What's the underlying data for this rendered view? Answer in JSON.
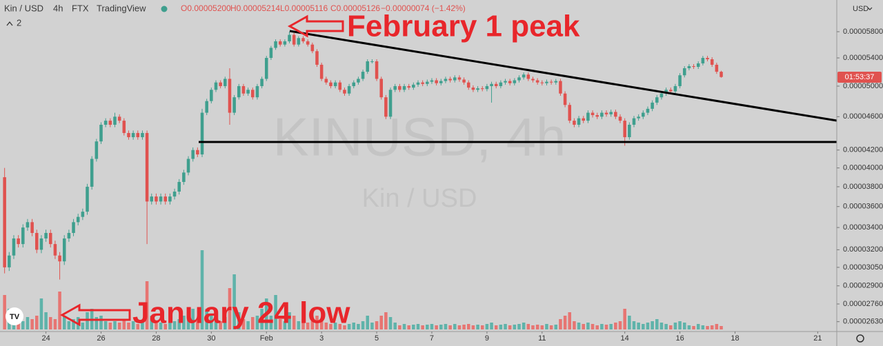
{
  "header": {
    "symbol": "Kin / USD",
    "interval": "4h",
    "exchange": "FTX",
    "source": "TradingView",
    "ohlc": [
      "O0.00005200",
      "H0.00005214",
      "L0.00005116",
      "C0.00005126",
      "−0.00000074 (−1.42%)"
    ],
    "indicators": "2",
    "currency": "USD",
    "countdown": "01:53:37"
  },
  "watermark": {
    "ticker": "KINUSD, 4h",
    "name": "Kin / USD"
  },
  "annotations": [
    "February 1 peak",
    "January 24 low"
  ],
  "chart_data": {
    "type": "candlestick",
    "log": true,
    "grid": false,
    "up_color": "#3f9f8e",
    "down_color": "#e0524f",
    "volume_up_color": "#5fb3aa",
    "volume_down_color": "#e77572",
    "xlim": [
      -1,
      181
    ],
    "xticks": [
      {
        "value": 9,
        "label": "24"
      },
      {
        "value": 21,
        "label": "26"
      },
      {
        "value": 33,
        "label": "28"
      },
      {
        "value": 45,
        "label": "30"
      },
      {
        "value": 57,
        "label": "Feb"
      },
      {
        "value": 69,
        "label": "3"
      },
      {
        "value": 81,
        "label": "5"
      },
      {
        "value": 93,
        "label": "7"
      },
      {
        "value": 105,
        "label": "9"
      },
      {
        "value": 117,
        "label": "11"
      },
      {
        "value": 135,
        "label": "14"
      },
      {
        "value": 147,
        "label": "16"
      },
      {
        "value": 159,
        "label": "18"
      },
      {
        "value": 177,
        "label": "21"
      }
    ],
    "ylim": [
      2.565e-05,
      6.324e-05
    ],
    "yticks": [
      {
        "value": 5.8e-05,
        "label": "0.00005800"
      },
      {
        "value": 5.4e-05,
        "label": "0.00005400"
      },
      {
        "value": 5e-05,
        "label": "0.00005000"
      },
      {
        "value": 4.6e-05,
        "label": "0.00004600"
      },
      {
        "value": 4.2e-05,
        "label": "0.00004200"
      },
      {
        "value": 4e-05,
        "label": "0.00004000"
      },
      {
        "value": 3.8e-05,
        "label": "0.00003800"
      },
      {
        "value": 3.6e-05,
        "label": "0.00003600"
      },
      {
        "value": 3.4e-05,
        "label": "0.00003400"
      },
      {
        "value": 3.2e-05,
        "label": "0.00003200"
      },
      {
        "value": 3.05e-05,
        "label": "0.00003050"
      },
      {
        "value": 2.9e-05,
        "label": "0.00002900"
      },
      {
        "value": 2.76e-05,
        "label": "0.00002760"
      },
      {
        "value": 2.63e-05,
        "label": "0.00002630"
      }
    ],
    "open": [
      3.9e-05,
      3.05e-05,
      3.15e-05,
      3.3e-05,
      3.25e-05,
      3.4e-05,
      3.45e-05,
      3.35e-05,
      3.2e-05,
      3.3e-05,
      3.35e-05,
      3.25e-05,
      3.15e-05,
      3.1e-05,
      3.3e-05,
      3.35e-05,
      3.45e-05,
      3.5e-05,
      3.55e-05,
      3.8e-05,
      4.1e-05,
      4.3e-05,
      4.5e-05,
      4.55e-05,
      4.5e-05,
      4.6e-05,
      4.55e-05,
      4.4e-05,
      4.35e-05,
      4.4e-05,
      4.35e-05,
      4.4e-05,
      3.65e-05,
      3.7e-05,
      3.65e-05,
      3.7e-05,
      3.65e-05,
      3.7e-05,
      3.75e-05,
      3.85e-05,
      3.95e-05,
      4.1e-05,
      4.2e-05,
      4.15e-05,
      4.65e-05,
      4.8e-05,
      4.95e-05,
      5.05e-05,
      5e-05,
      5.1e-05,
      4.65e-05,
      4.85e-05,
      5e-05,
      4.9e-05,
      4.95e-05,
      4.85e-05,
      5e-05,
      5.1e-05,
      5.4e-05,
      5.55e-05,
      5.65e-05,
      5.6e-05,
      5.65e-05,
      5.75e-05,
      5.6e-05,
      5.7e-05,
      5.65e-05,
      5.6e-05,
      5.5e-05,
      5.3e-05,
      5.1e-05,
      5.05e-05,
      5e-05,
      5.05e-05,
      4.95e-05,
      4.9e-05,
      5e-05,
      5.05e-05,
      5.1e-05,
      5.2e-05,
      5.35e-05,
      5.35e-05,
      5.1e-05,
      4.85e-05,
      4.6e-05,
      4.95e-05,
      5e-05,
      4.95e-05,
      5e-05,
      4.98e-05,
      5.02e-05,
      5.05e-05,
      5.03e-05,
      5.06e-05,
      5.08e-05,
      5.04e-05,
      5.07e-05,
      5.1e-05,
      5.08e-05,
      5.12e-05,
      5.09e-05,
      5.05e-05,
      4.98e-05,
      4.95e-05,
      4.97e-05,
      4.96e-05,
      5e-05,
      5.03e-05,
      5e-05,
      5.05e-05,
      5.07e-05,
      5.04e-05,
      5.08e-05,
      5.12e-05,
      5.16e-05,
      5.1e-05,
      5.08e-05,
      5.05e-05,
      5.04e-05,
      5.06e-05,
      5.05e-05,
      5.07e-05,
      4.9e-05,
      4.75e-05,
      4.55e-05,
      4.5e-05,
      4.58e-05,
      4.55e-05,
      4.65e-05,
      4.62e-05,
      4.6e-05,
      4.65e-05,
      4.63e-05,
      4.66e-05,
      4.6e-05,
      4.55e-05,
      4.35e-05,
      4.5e-05,
      4.58e-05,
      4.6e-05,
      4.65e-05,
      4.7e-05,
      4.78e-05,
      4.85e-05,
      4.9e-05,
      4.95e-05,
      4.93e-05,
      5e-05,
      5.15e-05,
      5.25e-05,
      5.28e-05,
      5.27e-05,
      5.32e-05,
      5.4e-05,
      5.38e-05,
      5.3e-05,
      5.2e-05
    ],
    "high": [
      4e-05,
      3.18e-05,
      3.33e-05,
      3.33e-05,
      3.43e-05,
      3.48e-05,
      3.48e-05,
      3.38e-05,
      3.33e-05,
      3.38e-05,
      3.38e-05,
      3.28e-05,
      3.18e-05,
      3.33e-05,
      3.38e-05,
      3.48e-05,
      3.53e-05,
      3.58e-05,
      3.83e-05,
      4.13e-05,
      4.33e-05,
      4.53e-05,
      4.58e-05,
      4.58e-05,
      4.65e-05,
      4.63e-05,
      4.58e-05,
      4.43e-05,
      4.43e-05,
      4.43e-05,
      4.43e-05,
      4.43e-05,
      3.73e-05,
      3.73e-05,
      3.73e-05,
      3.73e-05,
      3.73e-05,
      3.78e-05,
      3.88e-05,
      3.98e-05,
      4.13e-05,
      4.23e-05,
      4.23e-05,
      4.7e-05,
      4.83e-05,
      4.98e-05,
      5.08e-05,
      5.08e-05,
      5.13e-05,
      5.25e-05,
      4.88e-05,
      5.03e-05,
      5.03e-05,
      4.98e-05,
      4.98e-05,
      5.03e-05,
      5.13e-05,
      5.43e-05,
      5.58e-05,
      5.68e-05,
      5.68e-05,
      5.68e-05,
      5.8e-05,
      5.78e-05,
      5.73e-05,
      5.73e-05,
      5.68e-05,
      5.63e-05,
      5.53e-05,
      5.33e-05,
      5.13e-05,
      5.08e-05,
      5.08e-05,
      5.08e-05,
      4.98e-05,
      5.03e-05,
      5.08e-05,
      5.13e-05,
      5.23e-05,
      5.38e-05,
      5.38e-05,
      5.38e-05,
      5.13e-05,
      4.88e-05,
      4.98e-05,
      5.03e-05,
      5.03e-05,
      5.03e-05,
      5.03e-05,
      5.05e-05,
      5.08e-05,
      5.08e-05,
      5.09e-05,
      5.11e-05,
      5.11e-05,
      5.1e-05,
      5.13e-05,
      5.13e-05,
      5.15e-05,
      5.15e-05,
      5.12e-05,
      5.08e-05,
      5.01e-05,
      5e-05,
      5e-05,
      5.03e-05,
      5.06e-05,
      5.06e-05,
      5.08e-05,
      5.1e-05,
      5.1e-05,
      5.11e-05,
      5.15e-05,
      5.19e-05,
      5.19e-05,
      5.13e-05,
      5.11e-05,
      5.08e-05,
      5.09e-05,
      5.09e-05,
      5.1e-05,
      5.1e-05,
      4.93e-05,
      4.78e-05,
      4.58e-05,
      4.61e-05,
      4.61e-05,
      4.68e-05,
      4.68e-05,
      4.65e-05,
      4.68e-05,
      4.68e-05,
      4.69e-05,
      4.69e-05,
      4.63e-05,
      4.58e-05,
      4.53e-05,
      4.61e-05,
      4.63e-05,
      4.68e-05,
      4.73e-05,
      4.81e-05,
      4.88e-05,
      4.93e-05,
      4.98e-05,
      4.98e-05,
      5.03e-05,
      5.18e-05,
      5.28e-05,
      5.31e-05,
      5.31e-05,
      5.35e-05,
      5.43e-05,
      5.43e-05,
      5.41e-05,
      5.33e-05,
      5.214e-05
    ],
    "low": [
      3e-05,
      3.02e-05,
      3.12e-05,
      3.22e-05,
      3.22e-05,
      3.37e-05,
      3.32e-05,
      3.17e-05,
      3.17e-05,
      3.27e-05,
      3.22e-05,
      3.12e-05,
      2.95e-05,
      3.07e-05,
      3.27e-05,
      3.32e-05,
      3.42e-05,
      3.47e-05,
      3.52e-05,
      3.77e-05,
      4.07e-05,
      4.27e-05,
      4.47e-05,
      4.47e-05,
      4.47e-05,
      4.52e-05,
      4.37e-05,
      4.32e-05,
      4.32e-05,
      4.32e-05,
      4.32e-05,
      3.25e-05,
      3.62e-05,
      3.62e-05,
      3.62e-05,
      3.62e-05,
      3.62e-05,
      3.67e-05,
      3.72e-05,
      3.82e-05,
      3.92e-05,
      4.07e-05,
      4.12e-05,
      4.12e-05,
      4.62e-05,
      4.77e-05,
      4.92e-05,
      4.97e-05,
      4.97e-05,
      4.5e-05,
      4.62e-05,
      4.82e-05,
      4.87e-05,
      4.87e-05,
      4.82e-05,
      4.82e-05,
      4.97e-05,
      5.07e-05,
      5.37e-05,
      5.52e-05,
      5.57e-05,
      5.57e-05,
      5.62e-05,
      5.57e-05,
      5.57e-05,
      5.62e-05,
      5.57e-05,
      5.47e-05,
      5.27e-05,
      5.07e-05,
      5.02e-05,
      4.97e-05,
      4.97e-05,
      4.92e-05,
      4.87e-05,
      4.87e-05,
      4.97e-05,
      5.02e-05,
      5.07e-05,
      5.17e-05,
      5.32e-05,
      5.07e-05,
      4.82e-05,
      4.57e-05,
      4.57e-05,
      4.92e-05,
      4.92e-05,
      4.92e-05,
      4.95e-05,
      4.95e-05,
      4.99e-05,
      5e-05,
      5e-05,
      5.03e-05,
      5.01e-05,
      5.01e-05,
      5.04e-05,
      5.05e-05,
      5.05e-05,
      5.06e-05,
      5.02e-05,
      4.95e-05,
      4.92e-05,
      4.92e-05,
      4.93e-05,
      4.93e-05,
      4.78e-05,
      4.97e-05,
      4.97e-05,
      5.02e-05,
      5.01e-05,
      5.01e-05,
      5.05e-05,
      5.09e-05,
      5.07e-05,
      5.05e-05,
      5.02e-05,
      5.01e-05,
      5.01e-05,
      5.02e-05,
      5.02e-05,
      4.87e-05,
      4.72e-05,
      4.52e-05,
      4.47e-05,
      4.47e-05,
      4.52e-05,
      4.52e-05,
      4.59e-05,
      4.57e-05,
      4.57e-05,
      4.6e-05,
      4.6e-05,
      4.57e-05,
      4.52e-05,
      4.25e-05,
      4.32e-05,
      4.47e-05,
      4.55e-05,
      4.57e-05,
      4.62e-05,
      4.67e-05,
      4.75e-05,
      4.82e-05,
      4.87e-05,
      4.9e-05,
      4.9e-05,
      4.97e-05,
      5.12e-05,
      5.22e-05,
      5.24e-05,
      5.24e-05,
      5.29e-05,
      5.35e-05,
      5.27e-05,
      5.17e-05,
      5.116e-05
    ],
    "close": [
      3.05e-05,
      3.15e-05,
      3.3e-05,
      3.25e-05,
      3.4e-05,
      3.45e-05,
      3.35e-05,
      3.2e-05,
      3.3e-05,
      3.35e-05,
      3.25e-05,
      3.15e-05,
      3.1e-05,
      3.3e-05,
      3.35e-05,
      3.45e-05,
      3.5e-05,
      3.55e-05,
      3.8e-05,
      4.1e-05,
      4.3e-05,
      4.5e-05,
      4.55e-05,
      4.5e-05,
      4.6e-05,
      4.55e-05,
      4.4e-05,
      4.35e-05,
      4.4e-05,
      4.35e-05,
      4.4e-05,
      3.65e-05,
      3.7e-05,
      3.65e-05,
      3.7e-05,
      3.65e-05,
      3.7e-05,
      3.75e-05,
      3.85e-05,
      3.95e-05,
      4.1e-05,
      4.2e-05,
      4.15e-05,
      4.65e-05,
      4.8e-05,
      4.95e-05,
      5.05e-05,
      5e-05,
      5.1e-05,
      4.65e-05,
      4.85e-05,
      5e-05,
      4.9e-05,
      4.95e-05,
      4.85e-05,
      5e-05,
      5.1e-05,
      5.4e-05,
      5.55e-05,
      5.65e-05,
      5.6e-05,
      5.65e-05,
      5.75e-05,
      5.6e-05,
      5.7e-05,
      5.65e-05,
      5.6e-05,
      5.5e-05,
      5.3e-05,
      5.1e-05,
      5.05e-05,
      5e-05,
      5.05e-05,
      4.95e-05,
      4.9e-05,
      5e-05,
      5.05e-05,
      5.1e-05,
      5.2e-05,
      5.35e-05,
      5.35e-05,
      5.1e-05,
      4.85e-05,
      4.6e-05,
      4.95e-05,
      5e-05,
      4.95e-05,
      5e-05,
      4.98e-05,
      5.02e-05,
      5.05e-05,
      5.03e-05,
      5.06e-05,
      5.08e-05,
      5.04e-05,
      5.07e-05,
      5.1e-05,
      5.08e-05,
      5.12e-05,
      5.09e-05,
      5.05e-05,
      4.98e-05,
      4.95e-05,
      4.97e-05,
      4.96e-05,
      5e-05,
      5.03e-05,
      5e-05,
      5.05e-05,
      5.07e-05,
      5.04e-05,
      5.08e-05,
      5.12e-05,
      5.16e-05,
      5.1e-05,
      5.08e-05,
      5.05e-05,
      5.04e-05,
      5.06e-05,
      5.05e-05,
      5.07e-05,
      4.9e-05,
      4.75e-05,
      4.55e-05,
      4.5e-05,
      4.58e-05,
      4.55e-05,
      4.65e-05,
      4.62e-05,
      4.6e-05,
      4.65e-05,
      4.63e-05,
      4.66e-05,
      4.6e-05,
      4.55e-05,
      4.35e-05,
      4.5e-05,
      4.58e-05,
      4.6e-05,
      4.65e-05,
      4.7e-05,
      4.78e-05,
      4.85e-05,
      4.9e-05,
      4.95e-05,
      4.93e-05,
      5e-05,
      5.15e-05,
      5.25e-05,
      5.28e-05,
      5.27e-05,
      5.32e-05,
      5.4e-05,
      5.38e-05,
      5.3e-05,
      5.2e-05,
      5.126e-05
    ],
    "volume": [
      50,
      30,
      15,
      20,
      12,
      18,
      15,
      20,
      45,
      25,
      18,
      15,
      55,
      20,
      12,
      15,
      18,
      10,
      25,
      30,
      18,
      20,
      12,
      10,
      12,
      10,
      14,
      10,
      12,
      8,
      12,
      70,
      20,
      12,
      10,
      8,
      10,
      12,
      15,
      20,
      25,
      30,
      15,
      115,
      30,
      20,
      15,
      12,
      18,
      60,
      80,
      25,
      15,
      12,
      18,
      20,
      30,
      45,
      20,
      50,
      15,
      12,
      25,
      20,
      12,
      15,
      10,
      12,
      20,
      15,
      10,
      8,
      10,
      8,
      6,
      8,
      10,
      8,
      12,
      20,
      10,
      12,
      20,
      25,
      18,
      10,
      6,
      8,
      6,
      7,
      8,
      6,
      7,
      8,
      6,
      7,
      8,
      6,
      8,
      6,
      7,
      8,
      6,
      7,
      6,
      8,
      10,
      6,
      7,
      8,
      6,
      7,
      8,
      10,
      8,
      6,
      7,
      6,
      8,
      6,
      7,
      15,
      20,
      25,
      12,
      10,
      8,
      10,
      8,
      6,
      8,
      7,
      8,
      10,
      12,
      30,
      20,
      12,
      10,
      8,
      10,
      12,
      15,
      10,
      8,
      6,
      10,
      12,
      10,
      6,
      5,
      8,
      6,
      5,
      6,
      8,
      5
    ]
  }
}
